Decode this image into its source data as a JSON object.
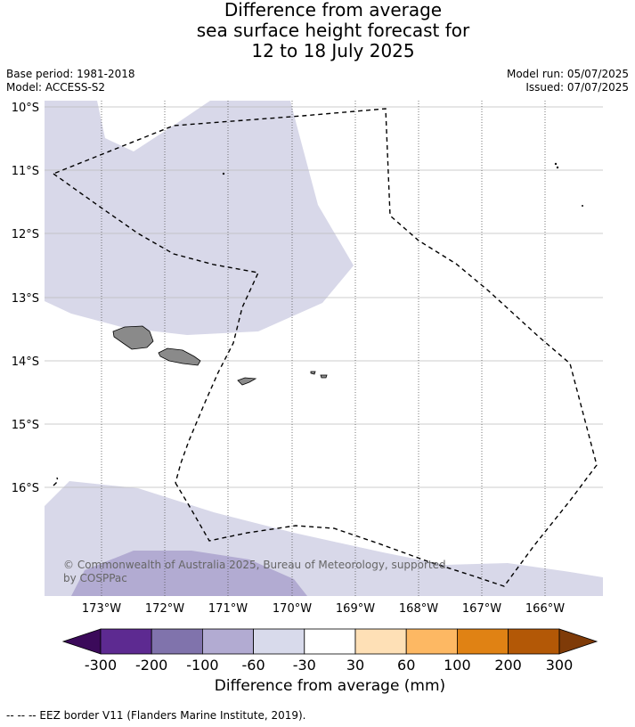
{
  "title": {
    "line1": "Difference from average",
    "line2": "sea surface height forecast for",
    "line3": "12 to 18 July 2025"
  },
  "meta": {
    "base_period": "Base period: 1981-2018",
    "model": "Model: ACCESS-S2",
    "model_run": "Model run: 05/07/2025",
    "issued": "Issued: 07/07/2025"
  },
  "map": {
    "lat_labels": [
      "10°S",
      "11°S",
      "12°S",
      "13°S",
      "14°S",
      "15°S",
      "16°S"
    ],
    "lon_labels": [
      "173°W",
      "172°W",
      "171°W",
      "170°W",
      "169°W",
      "168°W",
      "167°W",
      "166°W"
    ],
    "copyright": [
      "© Commonwealth of Australia 2025, Bureau of Meteorology, supported",
      "by COSPPac"
    ],
    "fill_colors": {
      "light": "#d8d8e9",
      "medium": "#b2abd2",
      "land": "#8a8a8a",
      "ocean": "#ffffff"
    }
  },
  "colorbar": {
    "ticks": [
      "-300",
      "-200",
      "-100",
      "-60",
      "-30",
      "30",
      "60",
      "100",
      "200",
      "300"
    ],
    "colors": [
      "#3b0a5a",
      "#5d2a91",
      "#8073ac",
      "#b2abd2",
      "#d8daeb",
      "#ffffff",
      "#fee0b6",
      "#fdb863",
      "#e08214",
      "#b35806",
      "#7f3b08"
    ],
    "label": "Difference from average (mm)"
  },
  "footnote": "--  --  -- EEZ border V11 (Flanders Marine Institute, 2019)."
}
